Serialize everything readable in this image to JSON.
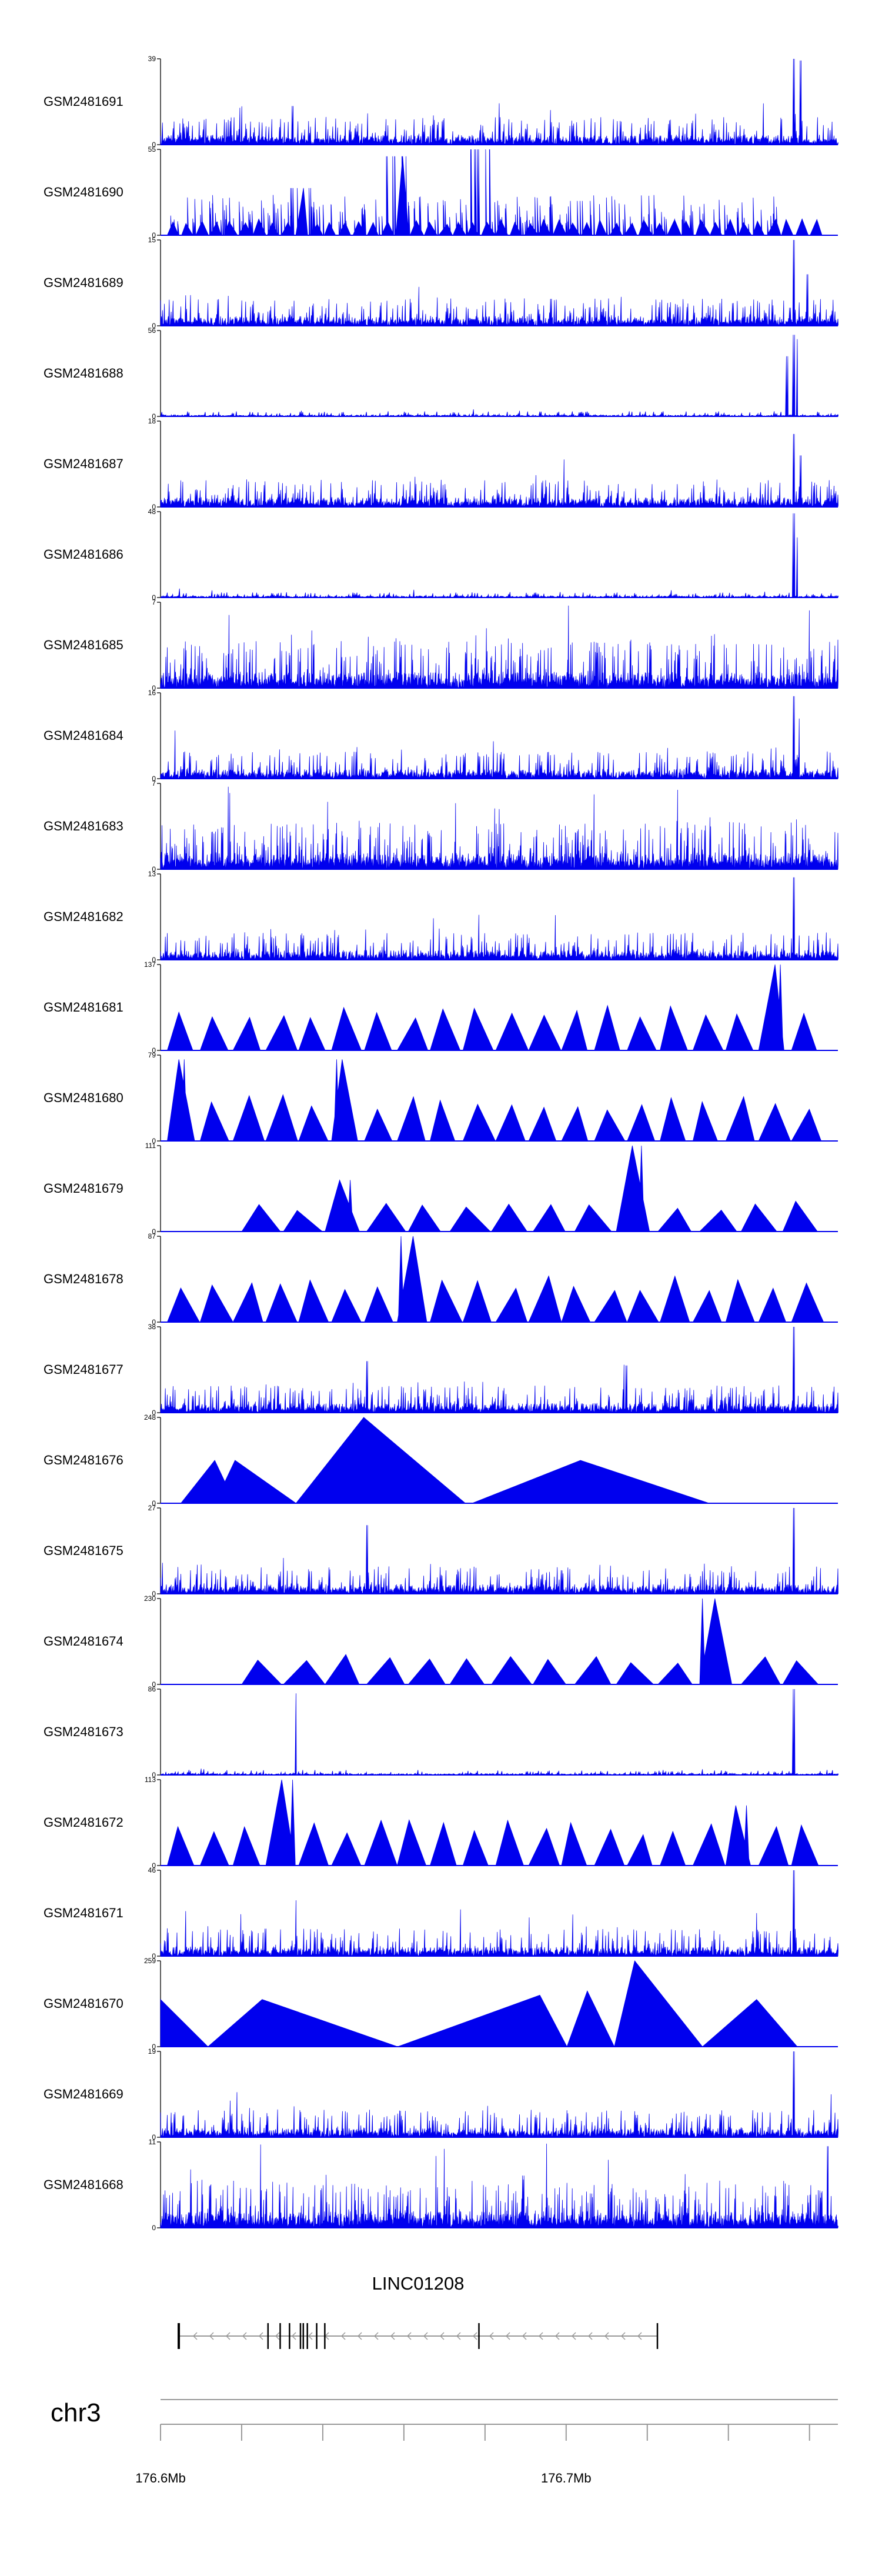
{
  "chart_data": {
    "type": "area",
    "title": "",
    "tracks": [
      {
        "name": "GSM2481691",
        "ymax": 39,
        "ymin": 0,
        "style": "dense",
        "seed": 11,
        "peaks": [
          {
            "x": 0.195,
            "h": 0.45
          },
          {
            "x": 0.935,
            "h": 1.0
          },
          {
            "x": 0.945,
            "h": 0.98
          }
        ]
      },
      {
        "name": "GSM2481690",
        "ymax": 55,
        "ymin": 0,
        "style": "dense-triangles",
        "seed": 12,
        "peaks": [
          {
            "x": 0.348,
            "h": 0.92
          },
          {
            "x": 0.472,
            "h": 1.0
          },
          {
            "x": 0.207,
            "h": 0.55
          },
          {
            "x": 0.62,
            "h": 0.4
          }
        ]
      },
      {
        "name": "GSM2481689",
        "ymax": 15,
        "ymin": 0,
        "style": "dense",
        "seed": 13,
        "peaks": [
          {
            "x": 0.935,
            "h": 1.0
          },
          {
            "x": 0.955,
            "h": 0.6
          }
        ]
      },
      {
        "name": "GSM2481688",
        "ymax": 56,
        "ymin": 0,
        "style": "sparse",
        "seed": 14,
        "peaks": [
          {
            "x": 0.925,
            "h": 0.7
          },
          {
            "x": 0.935,
            "h": 0.95
          },
          {
            "x": 0.94,
            "h": 0.9
          }
        ]
      },
      {
        "name": "GSM2481687",
        "ymax": 18,
        "ymin": 0,
        "style": "dense",
        "seed": 15,
        "peaks": [
          {
            "x": 0.935,
            "h": 0.85
          },
          {
            "x": 0.945,
            "h": 0.6
          }
        ]
      },
      {
        "name": "GSM2481686",
        "ymax": 48,
        "ymin": 0,
        "style": "sparse",
        "seed": 16,
        "peaks": [
          {
            "x": 0.935,
            "h": 0.98
          },
          {
            "x": 0.94,
            "h": 0.7
          }
        ]
      },
      {
        "name": "GSM2481685",
        "ymax": 7,
        "ymin": 0,
        "style": "very-dense",
        "seed": 17,
        "peaks": [
          {
            "x": 0.602,
            "h": 0.96
          }
        ]
      },
      {
        "name": "GSM2481684",
        "ymax": 16,
        "ymin": 0,
        "style": "dense",
        "seed": 18,
        "peaks": [
          {
            "x": 0.935,
            "h": 0.96
          },
          {
            "x": 0.943,
            "h": 0.7
          }
        ]
      },
      {
        "name": "GSM2481683",
        "ymax": 7,
        "ymin": 0,
        "style": "very-dense",
        "seed": 19,
        "peaks": [
          {
            "x": 0.1,
            "h": 0.96
          },
          {
            "x": 0.5,
            "h": 0.7
          }
        ]
      },
      {
        "name": "GSM2481682",
        "ymax": 13,
        "ymin": 0,
        "style": "dense",
        "seed": 20,
        "peaks": [
          {
            "x": 0.935,
            "h": 0.96
          }
        ]
      },
      {
        "name": "GSM2481681",
        "ymax": 137,
        "ymin": 0,
        "style": "triangles",
        "seed": 21,
        "peaks": [
          {
            "x": 0.915,
            "h": 1.0
          }
        ]
      },
      {
        "name": "GSM2481680",
        "ymax": 79,
        "ymin": 0,
        "style": "triangles",
        "seed": 22,
        "peaks": [
          {
            "x": 0.035,
            "h": 0.95
          },
          {
            "x": 0.26,
            "h": 0.95
          }
        ]
      },
      {
        "name": "GSM2481679",
        "ymax": 111,
        "ymin": 0,
        "style": "triangles-sparse",
        "seed": 23,
        "peaks": [
          {
            "x": 0.71,
            "h": 1.0
          },
          {
            "x": 0.28,
            "h": 0.6
          }
        ]
      },
      {
        "name": "GSM2481678",
        "ymax": 87,
        "ymin": 0,
        "style": "triangles",
        "seed": 24,
        "peaks": [
          {
            "x": 0.355,
            "h": 1.0
          }
        ]
      },
      {
        "name": "GSM2481677",
        "ymax": 38,
        "ymin": 0,
        "style": "dense",
        "seed": 25,
        "peaks": [
          {
            "x": 0.305,
            "h": 0.6
          },
          {
            "x": 0.688,
            "h": 0.55
          },
          {
            "x": 0.935,
            "h": 1.0
          }
        ]
      },
      {
        "name": "GSM2481676",
        "ymax": 248,
        "ymin": 0,
        "style": "big-triangles",
        "seed": 26,
        "peaks": []
      },
      {
        "name": "GSM2481675",
        "ymax": 27,
        "ymin": 0,
        "style": "dense",
        "seed": 27,
        "peaks": [
          {
            "x": 0.305,
            "h": 0.8
          },
          {
            "x": 0.935,
            "h": 1.0
          }
        ]
      },
      {
        "name": "GSM2481674",
        "ymax": 230,
        "ymin": 0,
        "style": "triangles-sparse",
        "seed": 28,
        "peaks": [
          {
            "x": 0.8,
            "h": 1.0
          }
        ]
      },
      {
        "name": "GSM2481673",
        "ymax": 86,
        "ymin": 0,
        "style": "sparse",
        "seed": 29,
        "peaks": [
          {
            "x": 0.2,
            "h": 0.95
          },
          {
            "x": 0.935,
            "h": 1.0
          }
        ]
      },
      {
        "name": "GSM2481672",
        "ymax": 113,
        "ymin": 0,
        "style": "triangles",
        "seed": 30,
        "peaks": [
          {
            "x": 0.195,
            "h": 1.0
          },
          {
            "x": 0.865,
            "h": 0.7
          }
        ]
      },
      {
        "name": "GSM2481671",
        "ymax": 46,
        "ymin": 0,
        "style": "dense",
        "seed": 31,
        "peaks": [
          {
            "x": 0.2,
            "h": 0.65
          },
          {
            "x": 0.935,
            "h": 1.0
          }
        ]
      },
      {
        "name": "GSM2481670",
        "ymax": 259,
        "ymin": 0,
        "style": "big-triangles-2",
        "seed": 32,
        "peaks": []
      },
      {
        "name": "GSM2481669",
        "ymax": 19,
        "ymin": 0,
        "style": "dense",
        "seed": 33,
        "peaks": [
          {
            "x": 0.935,
            "h": 1.0
          },
          {
            "x": 0.99,
            "h": 0.5
          }
        ]
      },
      {
        "name": "GSM2481668",
        "ymax": 11,
        "ymin": 0,
        "style": "very-dense",
        "seed": 34,
        "peaks": [
          {
            "x": 0.57,
            "h": 0.98
          },
          {
            "x": 0.985,
            "h": 0.95
          }
        ]
      }
    ],
    "gene": {
      "name": "LINC01208",
      "chrom": "chr3",
      "start_mb": 176.6045,
      "end_mb": 176.7225,
      "strand": "-",
      "exons_mb": [
        176.6045,
        176.6265,
        176.6295,
        176.6318,
        176.6345,
        176.6352,
        176.6362,
        176.6385,
        176.6405,
        176.6785,
        176.7225
      ]
    },
    "axis": {
      "start_mb": 176.6,
      "end_mb": 176.767,
      "ticks_mb": [
        176.6,
        176.62,
        176.64,
        176.66,
        176.68,
        176.7,
        176.72,
        176.74,
        176.76
      ],
      "tick_labels": [
        {
          "mb": 176.6,
          "text": "176.6Mb"
        },
        {
          "mb": 176.7,
          "text": "176.7Mb"
        }
      ]
    },
    "color": "#0000ee",
    "xlabel": "",
    "ylabel": ""
  }
}
